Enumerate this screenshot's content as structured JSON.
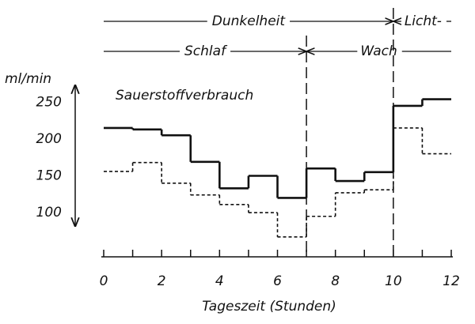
{
  "chart_data": {
    "type": "step",
    "title": "Sauerstoffverbrauch",
    "ylabel": "ml/min",
    "xlabel": "Tageszeit (Stunden)",
    "x": [
      0,
      1,
      2,
      3,
      4,
      5,
      6,
      7,
      8,
      9,
      10,
      11
    ],
    "series": [
      {
        "color": "#111111",
        "dashed": false,
        "values": [
          215,
          213,
          205,
          169,
          133,
          150,
          120,
          160,
          143,
          155,
          245,
          254
        ]
      },
      {
        "color": "#111111",
        "dashed": true,
        "values": [
          156,
          168,
          140,
          124,
          111,
          100,
          67,
          95,
          127,
          131,
          215,
          180
        ]
      }
    ],
    "xlim": [
      0,
      12
    ],
    "xticks": [
      0,
      2,
      4,
      6,
      8,
      10,
      12
    ],
    "xminor_ticks": [
      1,
      3,
      5,
      7,
      9,
      11
    ],
    "ylim": [
      40,
      275
    ],
    "yticks": [
      100,
      150,
      200,
      250
    ],
    "vlines": [
      7,
      10
    ],
    "light_phases": [
      {
        "label": "Dunkelheit",
        "start": 0,
        "end": 10
      },
      {
        "label": "Licht-",
        "start": 10,
        "end": 12
      }
    ],
    "activity_phases": [
      {
        "label": "Schlaf",
        "start": 0,
        "end": 7
      },
      {
        "label": "Wach",
        "start": 7,
        "end": 12
      }
    ]
  }
}
